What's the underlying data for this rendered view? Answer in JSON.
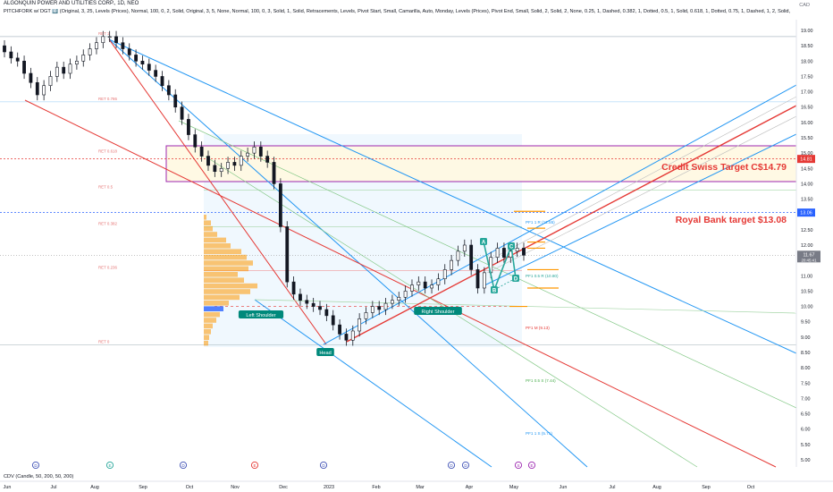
{
  "title": "ALGONQUIN POWER AND UTILITIES CORP., 1D, NEO",
  "study_line": "PITCHFORK w/ DGT 🔟 (Original, 3, 25, Levels (Prices), Normal, 100, 0, 2, Solid, Original, 3, 5, None, Normal, 100, 0, 3, Solid, 1, Solid, Retracements, Levels, Pivot Start, Small, Camarilla, Auto, Monday, Levels (Prices), Pivot End, Small, Solid, 2, Solid, 2, None, 0.25, 1, Dashed, 0.382, 1, Dotted, 0.5, 1, Solid, 0.618, 1, Dotted, 0.75, 1, Dashed, 1, 2, Solid,",
  "currency": "CAD",
  "cdv_label": "CDV (Candle, 50, 200, 50, 200)",
  "colors": {
    "up": "#26a69a",
    "down": "#ef5350",
    "candle": "#131722",
    "median": "#e53935",
    "outer": "#2196f3",
    "inner": "#4caf50",
    "purple": "#9c27b0",
    "orange": "#ff9800",
    "yellow_zone": "#fff8e1",
    "blue_zone": "#e3f2fd"
  },
  "chart_data": {
    "type": "candlestick",
    "title": "ALGONQUIN POWER AND UTILITIES CORP., 1D, NEO",
    "ylim": [
      4.75,
      19.35
    ],
    "y_ticks": [
      "19.00",
      "18.50",
      "18.00",
      "17.50",
      "17.00",
      "16.50",
      "16.00",
      "15.50",
      "15.00",
      "14.50",
      "14.00",
      "13.50",
      "13.00",
      "12.50",
      "12.00",
      "11.50",
      "11.00",
      "10.50",
      "10.00",
      "9.50",
      "9.00",
      "8.50",
      "8.00",
      "7.50",
      "7.00",
      "6.50",
      "6.00",
      "5.50",
      "5.00"
    ],
    "x_ticks": [
      "Jun",
      "Jul",
      "Aug",
      "Sep",
      "Oct",
      "Nov",
      "Dec",
      "2023",
      "Feb",
      "Mar",
      "Apr",
      "May",
      "Jun",
      "Jul",
      "Aug",
      "Sep",
      "Oct"
    ],
    "current_price": {
      "label": "11.67",
      "countdown": "20:45:41",
      "value": 11.67
    },
    "price_marks": [
      {
        "label": "14.81",
        "value": 14.81,
        "color": "#e53935"
      },
      {
        "label": "13.06",
        "value": 13.06,
        "color": "#2962ff"
      }
    ],
    "candles_close": [
      18.3,
      18.1,
      18.0,
      17.6,
      17.3,
      16.9,
      17.2,
      17.5,
      17.8,
      17.6,
      17.9,
      18.0,
      18.2,
      18.4,
      18.6,
      18.8,
      18.8,
      18.6,
      18.4,
      18.2,
      18.0,
      17.9,
      17.7,
      17.5,
      17.2,
      16.9,
      16.5,
      16.1,
      15.6,
      15.2,
      14.9,
      14.6,
      14.4,
      14.5,
      14.7,
      14.6,
      14.9,
      15.0,
      15.2,
      14.9,
      14.7,
      14.0,
      12.6,
      10.8,
      10.4,
      10.2,
      10.1,
      10.0,
      9.9,
      9.7,
      9.4,
      9.1,
      8.9,
      9.2,
      9.6,
      9.8,
      10.0,
      9.9,
      10.1,
      10.2,
      10.3,
      10.5,
      10.7,
      10.8,
      10.6,
      10.7,
      10.9,
      11.2,
      11.5,
      11.8,
      12.0,
      11.2,
      10.6,
      11.1,
      11.6,
      11.9,
      11.6,
      11.8,
      11.9,
      11.67
    ],
    "annotations": [
      {
        "text": "Credit Swiss Target C$14.79",
        "value": 14.79,
        "color": "#e53935"
      },
      {
        "text": "Royal Bank target $13.08",
        "value": 13.08,
        "color": "#e53935"
      },
      {
        "text": "Left Shoulder",
        "value": 9.8
      },
      {
        "text": "Head",
        "value": 8.55
      },
      {
        "text": "Right Shoulder",
        "value": 10.0
      }
    ],
    "fib_levels": [
      {
        "text": "RET 1",
        "value": 18.8
      },
      {
        "text": "RET 0.786",
        "value": 16.67
      },
      {
        "text": "RET 0.618",
        "value": 14.96
      },
      {
        "text": "RET 0.5",
        "value": 13.8
      },
      {
        "text": "RET 0.382",
        "value": 12.6
      },
      {
        "text": "RET 0.236",
        "value": 11.17
      },
      {
        "text": "RET 0",
        "value": 8.75
      }
    ],
    "pitchfork_levels": [
      {
        "text": "PF1 1 R (12.55)",
        "value": 12.55
      },
      {
        "text": "PF1 0.5 R (10.80)",
        "value": 10.8
      },
      {
        "text": "PF1 M (9.13)",
        "value": 9.13
      },
      {
        "text": "PF1 0.5 S (7.44)",
        "value": 7.44
      },
      {
        "text": "PF1 1 S (5.71)",
        "value": 5.71
      }
    ],
    "abcd": [
      "A",
      "B",
      "C",
      "D"
    ]
  }
}
